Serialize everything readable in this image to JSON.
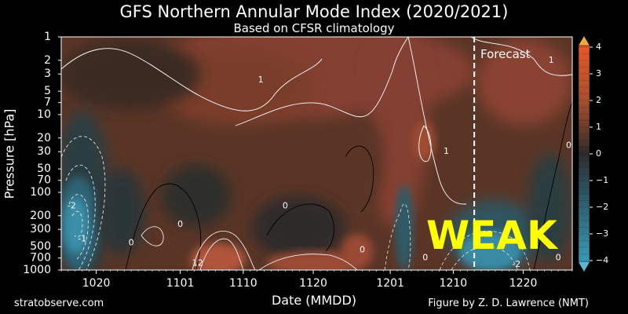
{
  "header": {
    "title": "GFS Northern Annular Mode Index (2020/2021)",
    "subtitle": "Based on CFSR climatology"
  },
  "footer": {
    "left": "stratobserve.com",
    "right": "Figure by Z. D. Lawrence (NMT)"
  },
  "annotations": {
    "forecast": "Forecast",
    "stamp": "WEAK"
  },
  "colors": {
    "background": "#000000",
    "stamp": "#ffff00",
    "positive_max": "#e8582a",
    "neutral": "#2a2a2a",
    "negative_min": "#3a9ab8"
  },
  "chart_data": {
    "type": "heatmap",
    "title": "GFS Northern Annular Mode Index (2020/2021)",
    "subtitle": "Based on CFSR climatology",
    "xlabel": "Date (MMDD)",
    "ylabel": "Pressure [hPa]",
    "x_ticks": [
      "1020",
      "1101",
      "1110",
      "1120",
      "1201",
      "1210",
      "1220"
    ],
    "x_tick_days": [
      20,
      32,
      41,
      51,
      62,
      71,
      81
    ],
    "x_range_days": [
      15,
      88
    ],
    "y_scale": "log",
    "y_ticks": [
      1,
      2,
      3,
      5,
      7,
      10,
      20,
      30,
      50,
      70,
      100,
      200,
      300,
      500,
      700,
      1000
    ],
    "ylim": [
      1000,
      1
    ],
    "forecast_start_day": 74,
    "colorbar": {
      "ticks": [
        4,
        3,
        2,
        1,
        0,
        -1,
        -2,
        -3,
        -4
      ],
      "range": [
        -4,
        4
      ]
    },
    "grid": false,
    "contour_labels": [
      {
        "text": "1",
        "day": 43.5,
        "p": 3.6
      },
      {
        "text": "1",
        "day": 70,
        "p": 30
      },
      {
        "text": "1",
        "day": 85,
        "p": 2
      },
      {
        "text": "-2",
        "day": 16.5,
        "p": 150
      },
      {
        "text": "-1",
        "day": 18,
        "p": 400
      },
      {
        "text": "0",
        "day": 25,
        "p": 450
      },
      {
        "text": "0",
        "day": 32,
        "p": 260
      },
      {
        "text": "0",
        "day": 47,
        "p": 150
      },
      {
        "text": "0",
        "day": 58,
        "p": 550
      },
      {
        "text": "0",
        "day": 67,
        "p": 700
      },
      {
        "text": "-2",
        "day": 80,
        "p": 850
      },
      {
        "text": "0",
        "day": 87.5,
        "p": 25
      },
      {
        "text": "0",
        "day": 86,
        "p": 700
      },
      {
        "text": "12",
        "day": 34.5,
        "p": 820
      }
    ]
  }
}
